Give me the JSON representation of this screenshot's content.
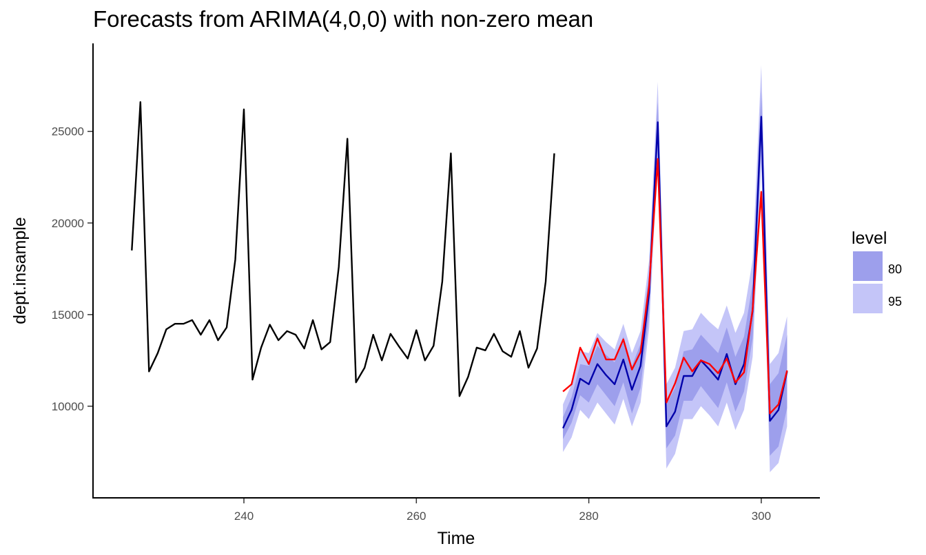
{
  "chart_data": {
    "type": "line",
    "title": "Forecasts from ARIMA(4,0,0) with non-zero mean",
    "xlabel": "Time",
    "ylabel": "dept.insample",
    "xlim": [
      222.5,
      306.8
    ],
    "ylim": [
      5000,
      29800
    ],
    "x_ticks": [
      240,
      260,
      280,
      300
    ],
    "y_ticks": [
      10000,
      15000,
      20000,
      25000
    ],
    "grid": false,
    "legend": {
      "title": "level",
      "position": "right",
      "entries": [
        {
          "label": "80",
          "color": "#9d9fec"
        },
        {
          "label": "95",
          "color": "#c4c5f8"
        }
      ]
    },
    "colors": {
      "history": "#000000",
      "forecast": "#0000aa",
      "fitted": "#ff0000",
      "band80": "#9d9fec",
      "band95": "#c4c5f8"
    },
    "history": {
      "x_start": 227,
      "values": [
        18500,
        26600,
        11900,
        12900,
        14200,
        14500,
        14500,
        14700,
        13900,
        14700,
        13600,
        14300,
        18000,
        26200,
        11450,
        13200,
        14450,
        13600,
        14100,
        13900,
        13150,
        14700,
        13100,
        13500,
        17600,
        24600,
        11300,
        12100,
        13900,
        12500,
        13950,
        13250,
        12600,
        14150,
        12500,
        13300,
        16800,
        23800,
        10550,
        11600,
        13200,
        13050,
        13950,
        13000,
        12700,
        14100,
        12100,
        13150,
        16800,
        23800
      ]
    },
    "forecast": {
      "x_start": 277,
      "mean": [
        8800,
        9800,
        11500,
        11200,
        12300,
        11700,
        11200,
        12550,
        10900,
        12200,
        16200,
        25500,
        8900,
        9700,
        11650,
        11650,
        12500,
        12000,
        11450,
        12850,
        11200,
        12300,
        15200,
        25800,
        9200,
        9800,
        11900
      ],
      "lo80": [
        8200,
        9100,
        10600,
        10200,
        11200,
        10600,
        10000,
        11300,
        9600,
        11000,
        15100,
        24400,
        7700,
        8400,
        10300,
        10300,
        11100,
        10500,
        9900,
        11300,
        9700,
        10800,
        13700,
        24300,
        7300,
        7800,
        9900
      ],
      "hi80": [
        9400,
        10500,
        12300,
        12200,
        13300,
        12800,
        12400,
        13800,
        12200,
        13400,
        17300,
        26600,
        10100,
        11000,
        13000,
        13100,
        13900,
        13400,
        12900,
        14300,
        12700,
        13800,
        16700,
        27200,
        11200,
        11800,
        13900
      ],
      "lo95": [
        7500,
        8300,
        9800,
        9300,
        10200,
        9600,
        9000,
        10400,
        8900,
        10200,
        14300,
        23600,
        6600,
        7400,
        9300,
        9300,
        10000,
        9500,
        8900,
        10200,
        8700,
        9800,
        12700,
        23200,
        6400,
        6900,
        8900
      ],
      "hi95": [
        10100,
        11200,
        13000,
        12900,
        14000,
        13500,
        13100,
        14500,
        12900,
        14100,
        18000,
        27700,
        11200,
        12100,
        14100,
        14200,
        15100,
        14600,
        14200,
        15500,
        14000,
        15100,
        18000,
        28600,
        12300,
        12900,
        14900
      ]
    },
    "fitted": {
      "x_start": 277,
      "values": [
        10800,
        11200,
        13200,
        12300,
        13700,
        12550,
        12550,
        13650,
        12000,
        12950,
        16600,
        23500,
        10200,
        11250,
        12650,
        11900,
        12500,
        12300,
        11800,
        12600,
        11300,
        11850,
        15300,
        21700,
        9600,
        10100,
        11950
      ]
    }
  }
}
